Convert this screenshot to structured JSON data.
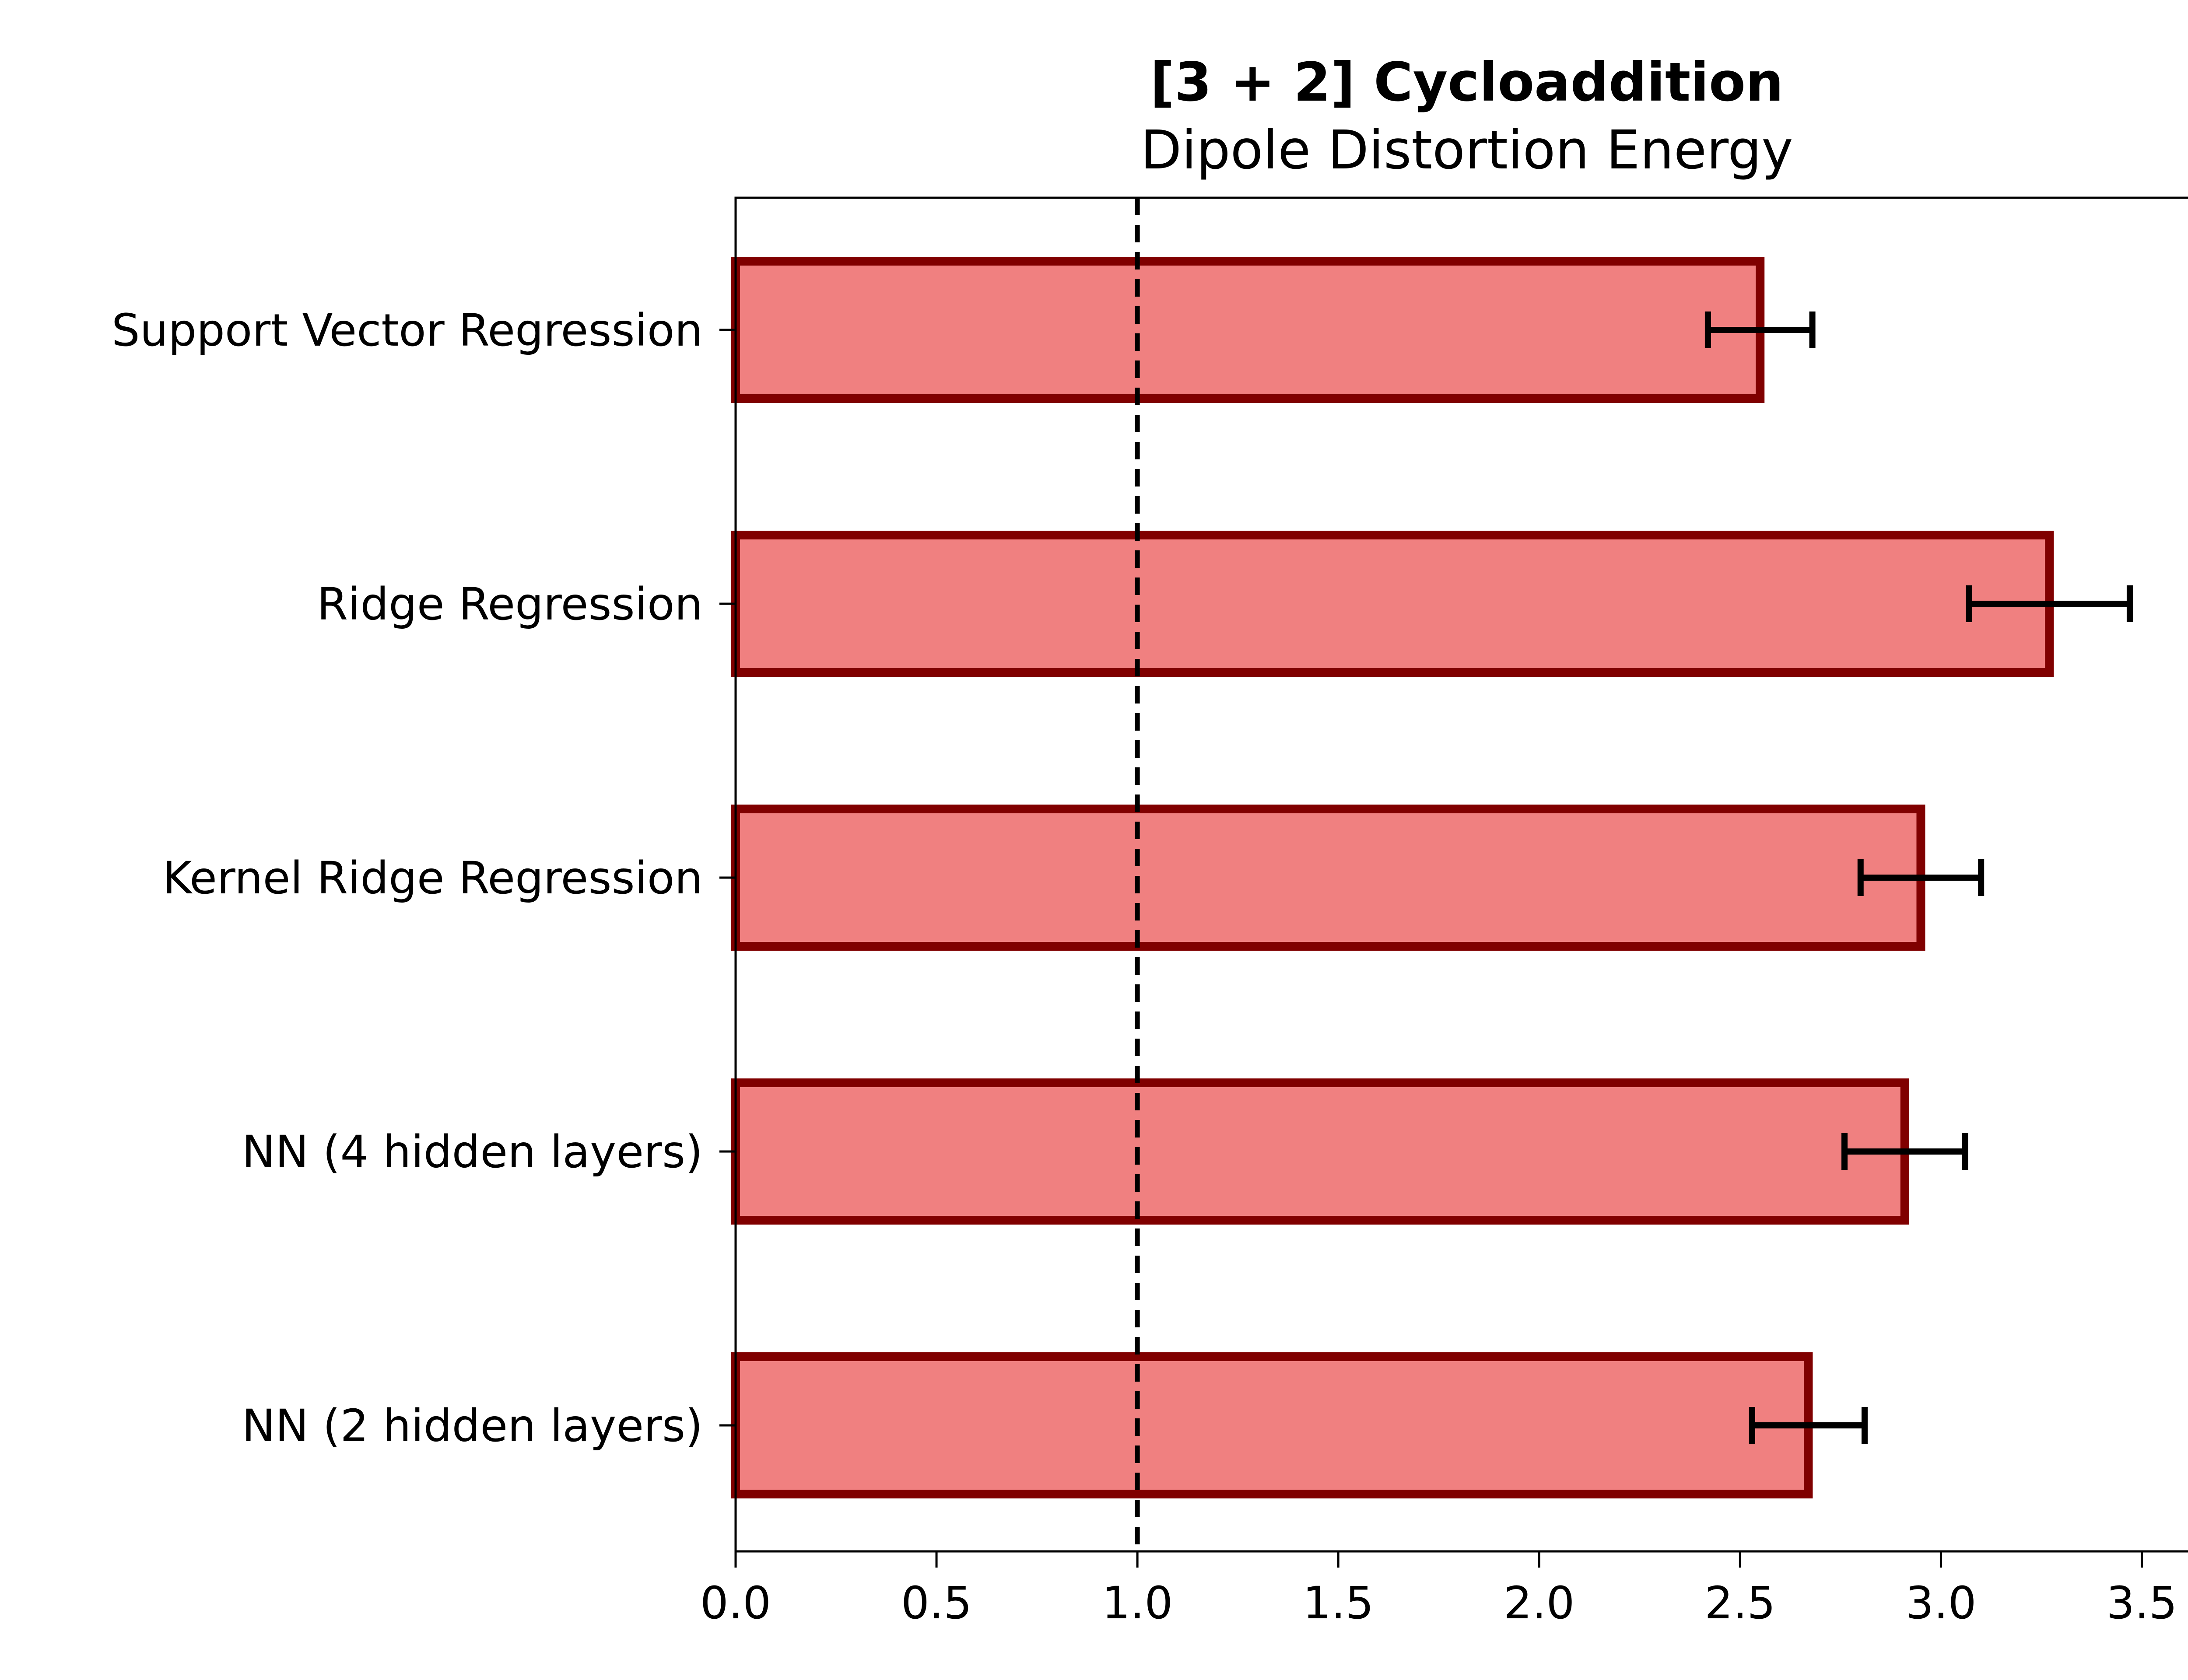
{
  "chart_data": {
    "type": "bar",
    "orientation": "horizontal",
    "title": "[3 + 2] Cycloaddition",
    "subtitle": "Dipole Distortion Energy",
    "xlabel": "",
    "ylabel": "",
    "categories": [
      "Support Vector Regression",
      "Ridge Regression",
      "Kernel Ridge Regression",
      "NN (4 hidden layers)",
      "NN (2 hidden layers)"
    ],
    "values": [
      2.55,
      3.27,
      2.95,
      2.91,
      2.67
    ],
    "errors": [
      0.13,
      0.2,
      0.15,
      0.15,
      0.14
    ],
    "xlim": [
      0,
      3.64
    ],
    "xticks": [
      0.0,
      0.5,
      1.0,
      1.5,
      2.0,
      2.5,
      3.0,
      3.5
    ],
    "xtick_labels": [
      "0.0",
      "0.5",
      "1.0",
      "1.5",
      "2.0",
      "2.5",
      "3.0",
      "3.5"
    ],
    "reference_line": {
      "x": 1.0,
      "style": "dashed",
      "color": "#000000"
    },
    "bar_fill_color": "#f08080",
    "bar_edge_color": "#800000",
    "error_bar_color": "#000000",
    "grid": false,
    "legend": "none"
  }
}
